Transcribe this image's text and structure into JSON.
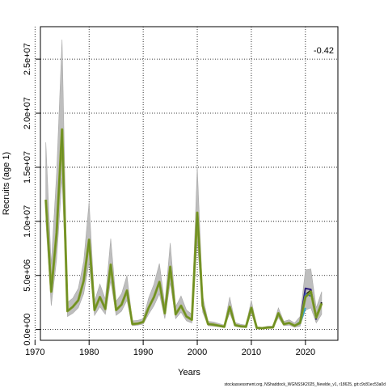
{
  "chart_data": {
    "type": "line",
    "title": "",
    "xlabel": "Years",
    "ylabel": "Recruits (age 1)",
    "annotation": "-0.42",
    "caption": "stockassessment.org, NShaddock_WGNSSK2025_Newlde_v1, r18625, git:c9c81ec53a0d",
    "xlim": [
      1971,
      2026
    ],
    "ylim": [
      -1000000,
      28000000
    ],
    "x_ticks": [
      1970,
      1980,
      1990,
      2000,
      2010,
      2020
    ],
    "x_tick_labels": [
      "1970",
      "1980",
      "1990",
      "2000",
      "2010",
      "2020"
    ],
    "y_ticks": [
      0,
      5000000,
      10000000,
      15000000,
      20000000,
      25000000
    ],
    "y_tick_labels": [
      "0.0e+00",
      "5.0e+06",
      "1.0e+07",
      "1.5e+07",
      "2.0e+07",
      "2.5e+07"
    ],
    "grid": true,
    "colors": {
      "band": "#bebebe",
      "main_line": "#6b8e23",
      "main_edge": "#8aa02c",
      "retro_colors": [
        "#000000",
        "#2b1a7a",
        "#3b5bb5",
        "#35a7c8",
        "#2aa05a"
      ]
    },
    "years": [
      1972,
      1973,
      1974,
      1975,
      1976,
      1977,
      1978,
      1979,
      1980,
      1981,
      1982,
      1983,
      1984,
      1985,
      1986,
      1987,
      1988,
      1989,
      1990,
      1991,
      1992,
      1993,
      1994,
      1995,
      1996,
      1997,
      1998,
      1999,
      2000,
      2001,
      2002,
      2003,
      2004,
      2005,
      2006,
      2007,
      2008,
      2009,
      2010,
      2011,
      2012,
      2013,
      2014,
      2015,
      2016,
      2017,
      2018,
      2019,
      2020,
      2021,
      2022,
      2023
    ],
    "estimate": [
      12000000,
      3500000,
      9000000,
      18500000,
      1700000,
      2100000,
      2700000,
      4500000,
      8300000,
      1800000,
      3000000,
      1900000,
      6000000,
      1800000,
      2300000,
      3600000,
      500000,
      550000,
      700000,
      2000000,
      3000000,
      4400000,
      1500000,
      5800000,
      1400000,
      2200000,
      1200000,
      900000,
      10800000,
      2200000,
      500000,
      450000,
      350000,
      250000,
      2100000,
      400000,
      300000,
      250000,
      2000000,
      150000,
      120000,
      180000,
      200000,
      1500000,
      500000,
      600000,
      350000,
      600000,
      3000000,
      3500000,
      1100000,
      2400000
    ],
    "lower": [
      10000000,
      2200000,
      6500000,
      14000000,
      1200000,
      1500000,
      2000000,
      3300000,
      6200000,
      1300000,
      2100000,
      1400000,
      4500000,
      1300000,
      1700000,
      2700000,
      350000,
      400000,
      500000,
      1400000,
      2200000,
      3300000,
      1000000,
      4300000,
      1000000,
      1600000,
      800000,
      600000,
      8200000,
      1600000,
      350000,
      300000,
      250000,
      180000,
      1500000,
      280000,
      200000,
      170000,
      1500000,
      100000,
      80000,
      120000,
      130000,
      1100000,
      350000,
      400000,
      200000,
      300000,
      1800000,
      2000000,
      600000,
      1400000
    ],
    "upper": [
      17300000,
      6000000,
      14500000,
      26800000,
      2500000,
      2900000,
      3800000,
      6300000,
      11800000,
      2600000,
      4200000,
      2800000,
      8400000,
      2600000,
      3300000,
      5000000,
      800000,
      850000,
      1000000,
      2900000,
      4200000,
      6100000,
      2300000,
      8000000,
      2100000,
      3100000,
      1800000,
      1400000,
      15000000,
      3100000,
      750000,
      700000,
      550000,
      400000,
      3000000,
      650000,
      480000,
      400000,
      2700000,
      250000,
      200000,
      300000,
      320000,
      2000000,
      750000,
      900000,
      600000,
      1200000,
      5500000,
      5600000,
      2000000,
      3500000
    ],
    "retro": [
      {
        "years": [
          2017,
          2018,
          2019,
          2020,
          2021,
          2022,
          2023
        ],
        "values": [
          600000,
          350000,
          650000,
          3200000,
          3600000,
          1200000,
          2500000
        ]
      },
      {
        "years": [
          2017,
          2018,
          2019,
          2020,
          2021,
          2022
        ],
        "values": [
          600000,
          350000,
          650000,
          3800000,
          3700000,
          900000
        ]
      },
      {
        "years": [
          2017,
          2018,
          2019,
          2020,
          2021
        ],
        "values": [
          600000,
          350000,
          600000,
          3300000,
          3100000
        ]
      },
      {
        "years": [
          2017,
          2018,
          2019,
          2020
        ],
        "values": [
          600000,
          350000,
          550000,
          2000000
        ]
      },
      {
        "years": [
          2017,
          2018,
          2019
        ],
        "values": [
          600000,
          350000,
          700000
        ]
      }
    ]
  }
}
